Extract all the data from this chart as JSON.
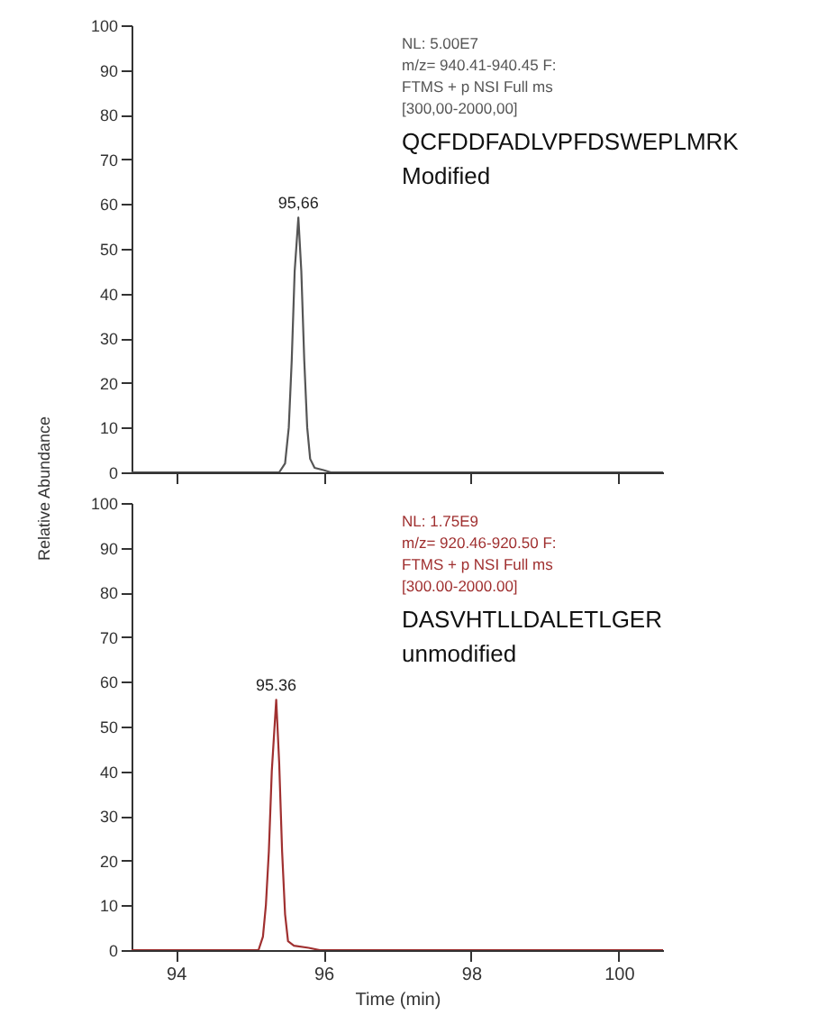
{
  "chart_data": [
    {
      "type": "line",
      "ylabel": "Relative Abundance",
      "xlim": [
        93.4,
        100.6
      ],
      "xticks": [
        94,
        96,
        98,
        100
      ],
      "ylim": [
        0,
        100
      ],
      "yticks": [
        0,
        10,
        20,
        30,
        40,
        50,
        60,
        70,
        80,
        90,
        100
      ],
      "tick_labels": "y",
      "grid": false,
      "marker": "none",
      "series": [
        {
          "color": "#555555",
          "x": [
            93.4,
            95.4,
            95.48,
            95.53,
            95.57,
            95.61,
            95.66,
            95.7,
            95.74,
            95.78,
            95.82,
            95.88,
            96.0,
            96.1,
            100.6
          ],
          "values": [
            0,
            0,
            2,
            10,
            25,
            45,
            57,
            45,
            25,
            10,
            3,
            1,
            0.5,
            0,
            0
          ]
        }
      ],
      "annotations": [
        "NL: 5.00E7",
        "m/z= 940.41-940.45 F:",
        "FTMS + p NSI Full ms",
        "[300,00-2000,00]",
        "QCFDDFADLVPFDSWEPLMRK",
        "Modified",
        {
          "text": "95,66",
          "x": 95.66,
          "y": 57
        }
      ]
    },
    {
      "type": "line",
      "xlabel": "Time (min)",
      "xlim": [
        93.4,
        100.6
      ],
      "xticks": [
        94,
        96,
        98,
        100
      ],
      "ylim": [
        0,
        100
      ],
      "yticks": [
        0,
        10,
        20,
        30,
        40,
        50,
        60,
        70,
        80,
        90,
        100
      ],
      "grid": false,
      "marker": "none",
      "series": [
        {
          "color": "#a03030",
          "x": [
            93.4,
            95.12,
            95.18,
            95.22,
            95.26,
            95.3,
            95.36,
            95.4,
            95.44,
            95.48,
            95.52,
            95.6,
            95.8,
            95.95,
            100.6
          ],
          "values": [
            0,
            0,
            3,
            10,
            22,
            40,
            56,
            42,
            22,
            8,
            2,
            1,
            0.5,
            0,
            0
          ]
        }
      ],
      "annotations": [
        "NL: 1.75E9",
        "m/z= 920.46-920.50 F:",
        "FTMS + p NSI Full ms",
        "[300.00-2000.00]",
        "DASVHTLLDALETLGER",
        "unmodified",
        {
          "text": "95.36",
          "x": 95.36,
          "y": 56
        }
      ]
    }
  ]
}
